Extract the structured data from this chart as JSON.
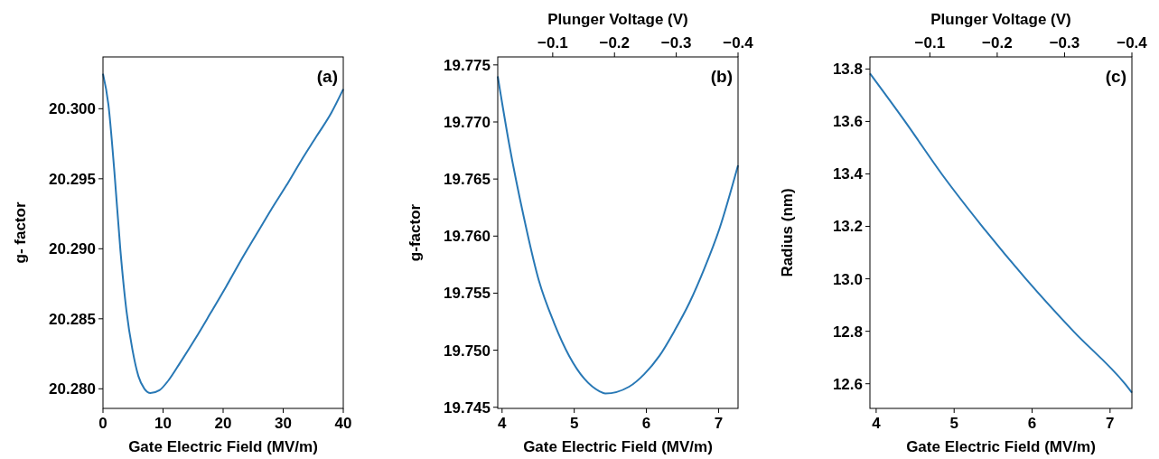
{
  "chart_data": [
    {
      "type": "line",
      "xlabel": "Gate Electric Field (MV/m)",
      "ylabel": "g- factor",
      "annotations": [
        "(a)"
      ],
      "xlim": [
        0,
        40
      ],
      "xticks": [
        0,
        10,
        20,
        30,
        40
      ],
      "ylim": [
        20.2786,
        20.3037
      ],
      "yticks": [
        {
          "value": 20.28,
          "label": "20.280"
        },
        {
          "value": 20.285,
          "label": "20.285"
        },
        {
          "value": 20.29,
          "label": "20.290"
        },
        {
          "value": 20.295,
          "label": "20.295"
        },
        {
          "value": 20.3,
          "label": "20.300"
        }
      ],
      "series": [
        {
          "color": "#2878b5",
          "x": [
            0,
            0.9,
            1.9,
            2.9,
            3.9,
            4.9,
            5.9,
            6.9,
            7.9,
            9.4,
            10.9,
            12.9,
            15.4,
            17.9,
            20.5,
            23.0,
            25.5,
            28.0,
            30.5,
            33.0,
            35.5,
            38.0,
            40
          ],
          "values": [
            20.3025,
            20.3003,
            20.2955,
            20.2899,
            20.2856,
            20.2828,
            20.2809,
            20.28,
            20.2797,
            20.2799,
            20.2806,
            20.2819,
            20.2836,
            20.2854,
            20.2873,
            20.2892,
            20.291,
            20.2928,
            20.2945,
            20.2963,
            20.298,
            20.2997,
            20.3014
          ]
        }
      ]
    },
    {
      "type": "line",
      "xlabel": "Gate Electric Field (MV/m)",
      "ylabel": "g-factor",
      "x2label": "Plunger Voltage (V)",
      "annotations": [
        "(b)"
      ],
      "xlim": [
        3.94,
        7.27
      ],
      "xticks": [
        4,
        5,
        6,
        7
      ],
      "ylim": [
        19.7449,
        19.7757
      ],
      "yticks": [
        {
          "value": 19.745,
          "label": "19.745"
        },
        {
          "value": 19.75,
          "label": "19.750"
        },
        {
          "value": 19.755,
          "label": "19.755"
        },
        {
          "value": 19.76,
          "label": "19.760"
        },
        {
          "value": 19.765,
          "label": "19.765"
        },
        {
          "value": 19.77,
          "label": "19.770"
        },
        {
          "value": 19.775,
          "label": "19.775"
        }
      ],
      "x2lim": [
        -0.011,
        -0.4
      ],
      "x2ticks": [
        {
          "value": -0.1,
          "label": "−0.1"
        },
        {
          "value": -0.2,
          "label": "−0.2"
        },
        {
          "value": -0.3,
          "label": "−0.3"
        },
        {
          "value": -0.4,
          "label": "−0.4"
        }
      ],
      "series": [
        {
          "color": "#2878b5",
          "x": [
            3.94,
            4.1,
            4.3,
            4.51,
            4.72,
            4.93,
            5.14,
            5.35,
            5.43,
            5.76,
            5.97,
            6.18,
            6.39,
            6.6,
            6.8,
            7.01,
            7.27
          ],
          "values": [
            19.774,
            19.768,
            19.7617,
            19.7561,
            19.7524,
            19.7495,
            19.7475,
            19.7464,
            19.7462,
            19.7468,
            19.7479,
            19.7495,
            19.7517,
            19.7542,
            19.7571,
            19.7606,
            19.7662
          ]
        }
      ]
    },
    {
      "type": "line",
      "xlabel": "Gate Electric Field (MV/m)",
      "ylabel": "Radius (nm)",
      "x2label": "Plunger Voltage (V)",
      "annotations": [
        "(c)"
      ],
      "xlim": [
        3.92,
        7.28
      ],
      "xticks": [
        4,
        5,
        6,
        7
      ],
      "ylim": [
        12.506,
        13.846
      ],
      "yticks": [
        12.6,
        12.8,
        {
          "value": 13.0,
          "label": "13.0"
        },
        13.2,
        13.4,
        13.6,
        13.8
      ],
      "x2lim": [
        -0.011,
        -0.4
      ],
      "x2ticks": [
        {
          "value": -0.1,
          "label": "−0.1"
        },
        {
          "value": -0.2,
          "label": "−0.2"
        },
        {
          "value": -0.3,
          "label": "−0.3"
        },
        {
          "value": -0.4,
          "label": "−0.4"
        }
      ],
      "series": [
        {
          "color": "#2878b5",
          "x": [
            3.92,
            4.37,
            4.84,
            5.36,
            5.92,
            6.53,
            7.19,
            7.28
          ],
          "values": [
            13.783,
            13.6,
            13.4,
            13.2,
            13.0,
            12.8,
            12.6,
            12.566
          ]
        }
      ]
    }
  ]
}
